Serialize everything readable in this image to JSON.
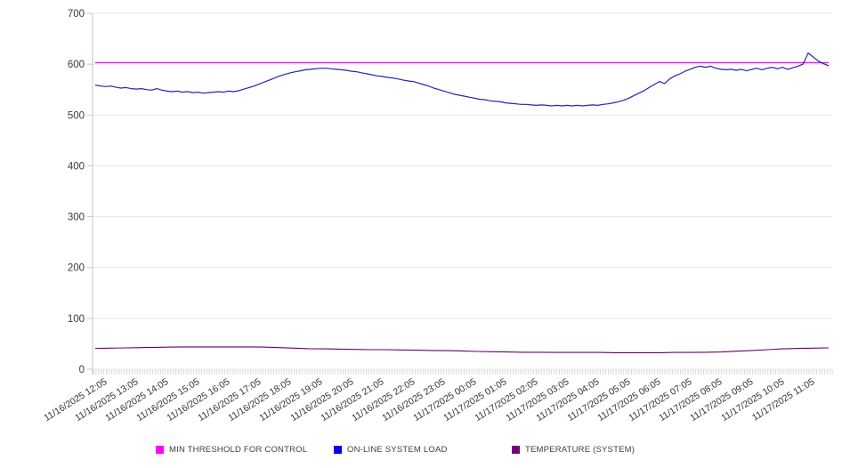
{
  "chart_data": {
    "type": "line",
    "title": "",
    "xlabel": "",
    "ylabel": "",
    "ylim": [
      0,
      700
    ],
    "grid": "horizontal",
    "legend_position": "bottom",
    "y_tick_labels": [
      "0",
      "100",
      "200",
      "300",
      "400",
      "500",
      "600",
      "700"
    ],
    "x_labels": [
      "11/16/2025 12:05",
      "11/16/2025 13:05",
      "11/16/2025 14:05",
      "11/16/2025 15:05",
      "11/16/2025 16:05",
      "11/16/2025 17:05",
      "11/16/2025 18:05",
      "11/16/2025 19:05",
      "11/16/2025 20:05",
      "11/16/2025 21:05",
      "11/16/2025 22:05",
      "11/16/2025 23:05",
      "11/17/2025 00:05",
      "11/17/2025 01:05",
      "11/17/2025 02:05",
      "11/17/2025 03:05",
      "11/17/2025 04:05",
      "11/17/2025 05:05",
      "11/17/2025 06:05",
      "11/17/2025 07:05",
      "11/17/2025 08:05",
      "11/17/2025 09:05",
      "11/17/2025 10:05",
      "11/17/2025 11:05"
    ],
    "x_label_interval_minutes": 60,
    "x_total_minutes": 1430,
    "minor_ticks_count": 288,
    "colors": {
      "grid": "#e6e6e6",
      "axis": "#c6c6c6",
      "minor_tick": "#cfcfcf",
      "tick_text": "#3a3a3a"
    },
    "series": [
      {
        "name": "MIN THRESHOLD FOR CONTROL",
        "color": "#e812e8",
        "swatch": "#ff00ff",
        "width": 1.4,
        "values": [
          603,
          603
        ]
      },
      {
        "name": "ON-LINE SYSTEM LOAD",
        "color": "#2424b8",
        "swatch": "#0000ff",
        "width": 1.2,
        "values": [
          559,
          557,
          556,
          557,
          555,
          553,
          554,
          552,
          551,
          552,
          550,
          549,
          552,
          549,
          547,
          546,
          547,
          545,
          546,
          544,
          545,
          543,
          544,
          545,
          546,
          545,
          547,
          546,
          548,
          551,
          554,
          557,
          561,
          565,
          569,
          573,
          577,
          580,
          583,
          585,
          587,
          589,
          590,
          591,
          592,
          592,
          591,
          590,
          589,
          588,
          586,
          585,
          583,
          581,
          579,
          577,
          576,
          574,
          573,
          571,
          569,
          567,
          566,
          563,
          560,
          557,
          553,
          550,
          547,
          544,
          541,
          539,
          537,
          535,
          533,
          531,
          530,
          528,
          527,
          526,
          524,
          523,
          522,
          521,
          521,
          520,
          519,
          520,
          519,
          518,
          519,
          518,
          519,
          518,
          519,
          518,
          519,
          520,
          519,
          521,
          522,
          524,
          526,
          529,
          533,
          538,
          543,
          548,
          554,
          560,
          566,
          562,
          571,
          577,
          581,
          586,
          590,
          594,
          596,
          594,
          596,
          592,
          590,
          589,
          590,
          588,
          590,
          587,
          590,
          592,
          589,
          592,
          594,
          591,
          594,
          590,
          593,
          596,
          600,
          622,
          614,
          606,
          601,
          597
        ]
      },
      {
        "name": "TEMPERATURE (SYSTEM)",
        "color": "#6a006a",
        "swatch": "#7b007b",
        "width": 1.1,
        "values": [
          41,
          41.5,
          42,
          42.5,
          43,
          43.5,
          44,
          44,
          44,
          44,
          44,
          43.5,
          42.5,
          41.5,
          40.5,
          40,
          39.5,
          39,
          38.5,
          38.5,
          38,
          37.5,
          37,
          36.5,
          36,
          35,
          34.5,
          34,
          33.5,
          33.5,
          33,
          33,
          33,
          33,
          32.5,
          32.5,
          32.5,
          32.5,
          33,
          33,
          33.5,
          34,
          35.5,
          37,
          38.5,
          40,
          41,
          41.5,
          42
        ]
      }
    ]
  }
}
